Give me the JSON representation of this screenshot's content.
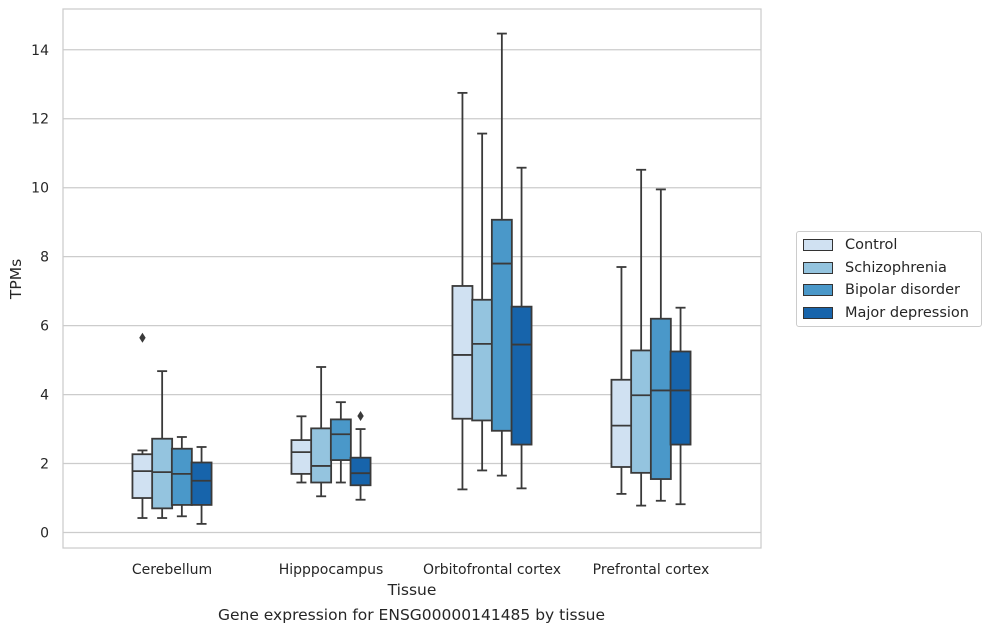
{
  "caption": "Gene expression for ENSG00000141485 by tissue",
  "chart_data": {
    "type": "boxplot",
    "xlabel": "Tissue",
    "ylabel": "TPMs",
    "ylim": [
      -0.4,
      15.2
    ],
    "yticks": [
      0,
      2,
      4,
      6,
      8,
      10,
      12,
      14
    ],
    "grid": "horizontal",
    "legend_position": "right",
    "categories": [
      "Cerebellum",
      "Hipppocampus",
      "Orbitofrontal cortex",
      "Prefrontal cortex"
    ],
    "series": [
      {
        "name": "Control",
        "color": "#d0e1f2",
        "boxes": [
          {
            "whislo": 0.42,
            "q1": 1.0,
            "med": 1.78,
            "q3": 2.27,
            "whishi": 2.38,
            "fliers": [
              5.65
            ]
          },
          {
            "whislo": 1.45,
            "q1": 1.7,
            "med": 2.33,
            "q3": 2.68,
            "whishi": 3.37,
            "fliers": []
          },
          {
            "whislo": 1.25,
            "q1": 3.3,
            "med": 5.15,
            "q3": 7.15,
            "whishi": 12.75,
            "fliers": []
          },
          {
            "whislo": 1.12,
            "q1": 1.9,
            "med": 3.1,
            "q3": 4.43,
            "whishi": 7.7,
            "fliers": []
          }
        ]
      },
      {
        "name": "Schizophrenia",
        "color": "#94c4df",
        "boxes": [
          {
            "whislo": 0.42,
            "q1": 0.7,
            "med": 1.75,
            "q3": 2.72,
            "whishi": 4.68,
            "fliers": []
          },
          {
            "whislo": 1.05,
            "q1": 1.45,
            "med": 1.93,
            "q3": 3.02,
            "whishi": 4.8,
            "fliers": []
          },
          {
            "whislo": 1.8,
            "q1": 3.25,
            "med": 5.47,
            "q3": 6.75,
            "whishi": 11.57,
            "fliers": []
          },
          {
            "whislo": 0.78,
            "q1": 1.73,
            "med": 3.98,
            "q3": 5.28,
            "whishi": 10.52,
            "fliers": []
          }
        ]
      },
      {
        "name": "Bipolar disorder",
        "color": "#4a98c9",
        "boxes": [
          {
            "whislo": 0.47,
            "q1": 0.8,
            "med": 1.7,
            "q3": 2.43,
            "whishi": 2.77,
            "fliers": []
          },
          {
            "whislo": 1.45,
            "q1": 2.1,
            "med": 2.85,
            "q3": 3.28,
            "whishi": 3.78,
            "fliers": []
          },
          {
            "whislo": 1.65,
            "q1": 2.95,
            "med": 7.8,
            "q3": 9.07,
            "whishi": 14.47,
            "fliers": []
          },
          {
            "whislo": 0.92,
            "q1": 1.55,
            "med": 4.12,
            "q3": 6.2,
            "whishi": 9.95,
            "fliers": []
          }
        ]
      },
      {
        "name": "Major depression",
        "color": "#1764ab",
        "boxes": [
          {
            "whislo": 0.25,
            "q1": 0.8,
            "med": 1.5,
            "q3": 2.03,
            "whishi": 2.48,
            "fliers": []
          },
          {
            "whislo": 0.95,
            "q1": 1.37,
            "med": 1.72,
            "q3": 2.17,
            "whishi": 3.0,
            "fliers": [
              3.38
            ]
          },
          {
            "whislo": 1.28,
            "q1": 2.55,
            "med": 5.45,
            "q3": 6.55,
            "whishi": 10.58,
            "fliers": []
          },
          {
            "whislo": 0.82,
            "q1": 2.55,
            "med": 4.12,
            "q3": 5.25,
            "whishi": 6.52,
            "fliers": []
          }
        ]
      }
    ]
  }
}
